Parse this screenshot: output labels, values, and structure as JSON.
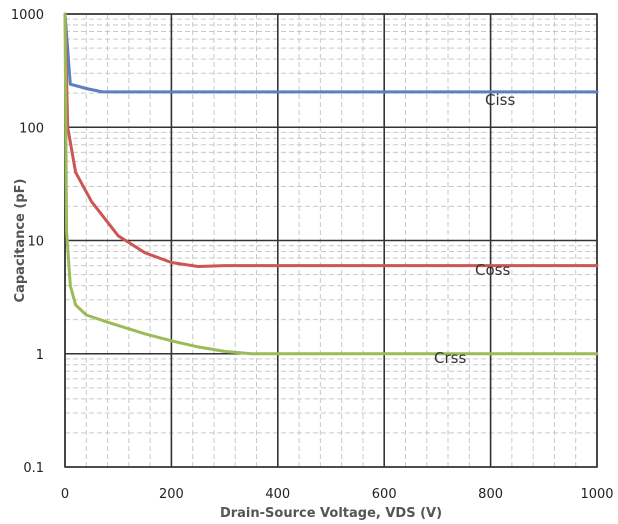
{
  "chart_data": {
    "type": "line",
    "xlabel": "Drain-Source Voltage, VDS (V)",
    "ylabel": "Capacitance (pF)",
    "xlim": [
      0,
      1000
    ],
    "ylim": [
      0.1,
      1000
    ],
    "y_scale": "log",
    "x_ticks": [
      "0",
      "200",
      "400",
      "600",
      "800",
      "1000"
    ],
    "y_ticks": [
      "0.1",
      "1",
      "10",
      "100",
      "1000"
    ],
    "grid": true,
    "series": [
      {
        "name": "Ciss",
        "color": "#5b7fc0",
        "x": [
          0,
          10,
          40,
          70,
          100,
          200,
          400,
          600,
          800,
          1000
        ],
        "y": [
          1000,
          240,
          220,
          205,
          205,
          205,
          205,
          205,
          205,
          205
        ]
      },
      {
        "name": "Coss",
        "color": "#cc5555",
        "x": [
          0,
          5,
          20,
          50,
          100,
          150,
          200,
          250,
          300,
          400,
          600,
          800,
          1000
        ],
        "y": [
          1000,
          100,
          40,
          22,
          11,
          7.8,
          6.4,
          5.9,
          6.0,
          6.0,
          6.0,
          6.0,
          6.0
        ]
      },
      {
        "name": "Crss",
        "color": "#9bbb59",
        "x": [
          0,
          3,
          10,
          20,
          40,
          80,
          150,
          200,
          250,
          300,
          350,
          400,
          600,
          800,
          1000
        ],
        "y": [
          1000,
          12,
          4.0,
          2.7,
          2.2,
          1.9,
          1.5,
          1.3,
          1.15,
          1.05,
          1.0,
          1.0,
          1.0,
          1.0,
          1.0
        ]
      }
    ]
  }
}
